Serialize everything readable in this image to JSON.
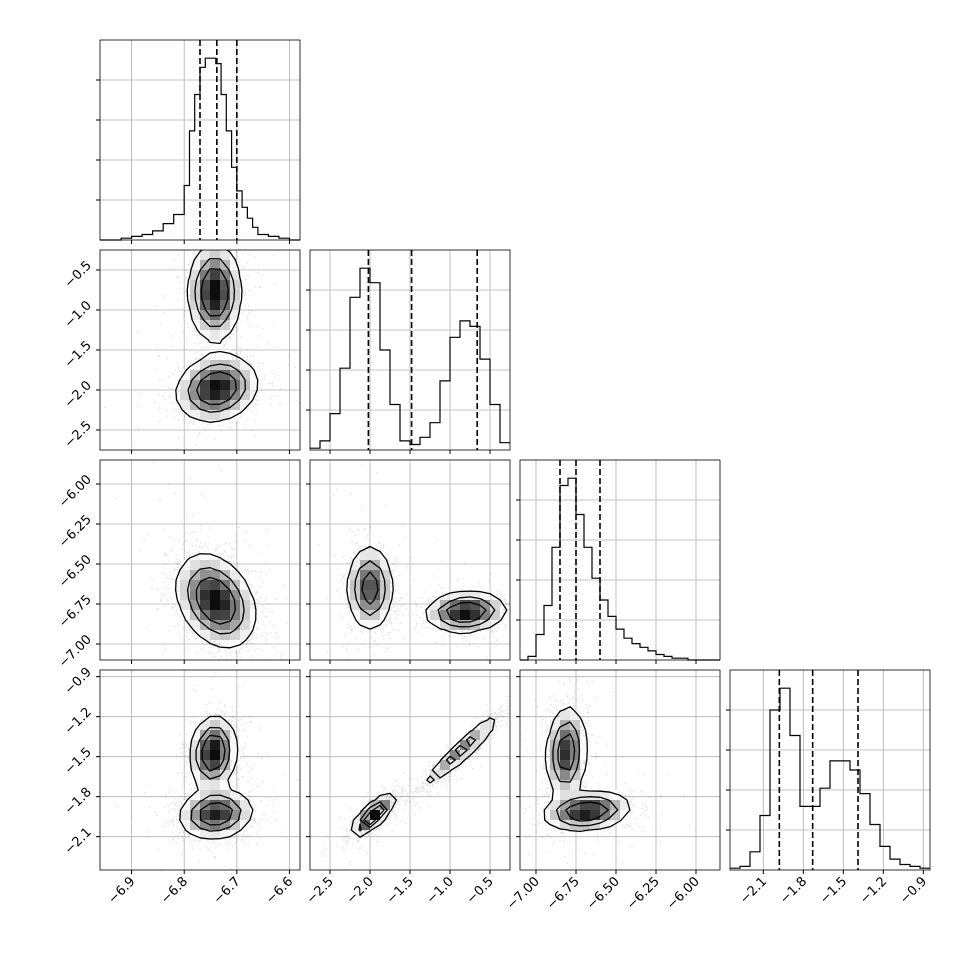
{
  "chart_data": {
    "type": "corner",
    "grid": true,
    "colors": {
      "line": "#000000",
      "grid": "#b0b0b0",
      "scatter": "#000000"
    },
    "params": [
      {
        "range": [
          -6.96,
          -6.58
        ],
        "ticks": [
          -6.9,
          -6.8,
          -6.7,
          -6.6
        ],
        "tick_labels": [
          "−6.9",
          "−6.8",
          "−6.7",
          "−6.6"
        ],
        "quantiles": [
          -6.77,
          -6.738,
          -6.7
        ],
        "hist": {
          "edges": [
            -6.96,
            -6.94,
            -6.92,
            -6.9,
            -6.88,
            -6.86,
            -6.84,
            -6.82,
            -6.8,
            -6.79,
            -6.78,
            -6.77,
            -6.76,
            -6.75,
            -6.74,
            -6.73,
            -6.72,
            -6.71,
            -6.7,
            -6.69,
            -6.68,
            -6.67,
            -6.66,
            -6.64,
            -6.62,
            -6.6,
            -6.58
          ],
          "values": [
            0,
            0,
            0.01,
            0.02,
            0.03,
            0.05,
            0.09,
            0.14,
            0.3,
            0.6,
            0.8,
            0.95,
            1.0,
            1.0,
            0.97,
            0.8,
            0.6,
            0.4,
            0.27,
            0.18,
            0.12,
            0.07,
            0.03,
            0.02,
            0.01,
            0
          ]
        }
      },
      {
        "range": [
          -2.75,
          -0.25
        ],
        "ticks": [
          -2.5,
          -2.0,
          -1.5,
          -1.0,
          -0.5
        ],
        "tick_labels": [
          "−2.5",
          "−2.0",
          "−1.5",
          "−1.0",
          "−0.5"
        ],
        "quantiles": [
          -2.02,
          -1.48,
          -0.66
        ],
        "hist": {
          "edges": [
            -2.75,
            -2.625,
            -2.5,
            -2.375,
            -2.25,
            -2.125,
            -2.0,
            -1.875,
            -1.75,
            -1.625,
            -1.5,
            -1.375,
            -1.25,
            -1.125,
            -1.0,
            -0.875,
            -0.75,
            -0.625,
            -0.5,
            -0.375,
            -0.25
          ],
          "values": [
            0.01,
            0.05,
            0.2,
            0.45,
            0.84,
            1.0,
            0.92,
            0.55,
            0.25,
            0.05,
            0.03,
            0.07,
            0.15,
            0.38,
            0.62,
            0.71,
            0.68,
            0.5,
            0.25,
            0.04
          ]
        }
      },
      {
        "range": [
          -7.1,
          -5.85
        ],
        "ticks": [
          -7.0,
          -6.75,
          -6.5,
          -6.25,
          -6.0
        ],
        "tick_labels": [
          "−7.00",
          "−6.75",
          "−6.50",
          "−6.25",
          "−6.00"
        ],
        "quantiles": [
          -6.85,
          -6.75,
          -6.6
        ],
        "hist": {
          "edges": [
            -7.1,
            -7.05,
            -7.0,
            -6.95,
            -6.9,
            -6.85,
            -6.8,
            -6.75,
            -6.7,
            -6.65,
            -6.6,
            -6.55,
            -6.5,
            -6.45,
            -6.4,
            -6.35,
            -6.3,
            -6.25,
            -6.2,
            -6.15,
            -6.1,
            -6.05,
            -6.0,
            -5.95,
            -5.9,
            -5.85
          ],
          "values": [
            0,
            0.02,
            0.14,
            0.3,
            0.62,
            0.96,
            1.0,
            0.8,
            0.62,
            0.45,
            0.33,
            0.24,
            0.17,
            0.12,
            0.09,
            0.07,
            0.05,
            0.03,
            0.02,
            0.01,
            0.01,
            0,
            0,
            0,
            0
          ]
        }
      },
      {
        "range": [
          -2.35,
          -0.85
        ],
        "ticks": [
          -2.1,
          -1.8,
          -1.5,
          -1.2,
          -0.9
        ],
        "tick_labels": [
          "−2.1",
          "−1.8",
          "−1.5",
          "−1.2",
          "−0.9"
        ],
        "quantiles": [
          -1.98,
          -1.73,
          -1.39
        ],
        "hist": {
          "edges": [
            -2.35,
            -2.275,
            -2.2,
            -2.125,
            -2.05,
            -1.975,
            -1.9,
            -1.825,
            -1.75,
            -1.675,
            -1.6,
            -1.525,
            -1.45,
            -1.375,
            -1.3,
            -1.225,
            -1.15,
            -1.075,
            -1.0,
            -0.925,
            -0.85
          ],
          "values": [
            0.01,
            0.02,
            0.1,
            0.3,
            0.88,
            1.0,
            0.74,
            0.35,
            0.35,
            0.45,
            0.6,
            0.6,
            0.55,
            0.42,
            0.25,
            0.13,
            0.06,
            0.03,
            0.02,
            0.01
          ]
        }
      }
    ],
    "pairs": [
      {
        "x": 0,
        "y": 1,
        "blobs": [
          {
            "mx": -6.742,
            "my": -0.78,
            "sx": 0.024,
            "sy": 0.29,
            "rho": 0.0,
            "w": 0.5
          },
          {
            "mx": -6.738,
            "my": -1.98,
            "sx": 0.037,
            "sy": 0.2,
            "rho": 0.15,
            "w": 0.5
          }
        ]
      },
      {
        "x": 0,
        "y": 2,
        "blobs": [
          {
            "mx": -6.74,
            "my": -6.73,
            "sx": 0.036,
            "sy": 0.14,
            "rho": -0.3,
            "w": 1.0
          }
        ]
      },
      {
        "x": 0,
        "y": 3,
        "blobs": [
          {
            "mx": -6.745,
            "my": -1.47,
            "sx": 0.021,
            "sy": 0.13,
            "rho": 0.1,
            "w": 0.5
          },
          {
            "mx": -6.74,
            "my": -1.93,
            "sx": 0.034,
            "sy": 0.09,
            "rho": 0.1,
            "w": 0.5
          }
        ]
      },
      {
        "x": 1,
        "y": 2,
        "blobs": [
          {
            "mx": -2.0,
            "my": -6.65,
            "sx": 0.14,
            "sy": 0.13,
            "rho": 0.0,
            "w": 0.5
          },
          {
            "mx": -0.8,
            "my": -6.8,
            "sx": 0.24,
            "sy": 0.06,
            "rho": 0.1,
            "w": 0.5
          }
        ]
      },
      {
        "x": 1,
        "y": 3,
        "blobs": [
          {
            "mx": -1.96,
            "my": -1.94,
            "sx": 0.13,
            "sy": 0.075,
            "rho": 0.8,
            "w": 0.5
          },
          {
            "mx": -0.85,
            "my": -1.45,
            "sx": 0.25,
            "sy": 0.14,
            "rho": 0.95,
            "w": 0.5
          }
        ]
      },
      {
        "x": 2,
        "y": 3,
        "blobs": [
          {
            "mx": -6.81,
            "my": -1.47,
            "sx": 0.06,
            "sy": 0.17,
            "rho": 0.1,
            "w": 0.5
          },
          {
            "mx": -6.68,
            "my": -1.91,
            "sx": 0.13,
            "sy": 0.07,
            "rho": 0.2,
            "w": 0.5
          }
        ]
      }
    ]
  }
}
